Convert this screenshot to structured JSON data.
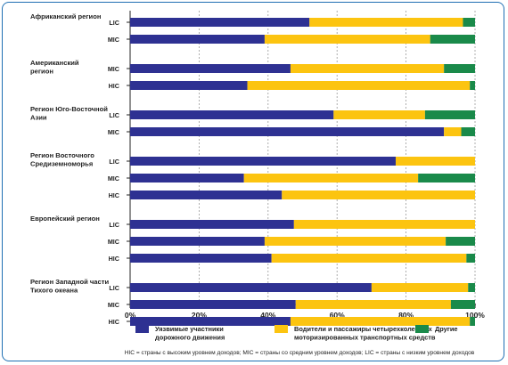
{
  "chart_data": {
    "type": "bar",
    "orientation": "horizontal",
    "stacked": "percent",
    "xlim": [
      0,
      100
    ],
    "xticks": [
      "0%",
      "20%",
      "40%",
      "60%",
      "80%",
      "100%"
    ],
    "grid": true,
    "legend_position": "bottom",
    "colors": {
      "vulnerable": "#2e3192",
      "drivers": "#fcc410",
      "other": "#1a8a4a"
    },
    "series_names": [
      "Уязвимые участники дорожного движения",
      "Водители и пассажиры четырехколесных моторизированных транспортных средств",
      "Другие"
    ],
    "legend_labels": [
      [
        "Уязвимые участники",
        "дорожного движения"
      ],
      [
        "Водители и пассажиры четырехколесных",
        "моторизированных транспортных средств"
      ],
      [
        "Другие"
      ]
    ],
    "groups": [
      {
        "region": [
          "Африканский регион"
        ],
        "bars": [
          {
            "code": "LIC",
            "values": [
              52,
              44.5,
              3.5
            ]
          },
          {
            "code": "MIC",
            "values": [
              39,
              48,
              13
            ]
          }
        ]
      },
      {
        "region": [
          "Американский",
          "регион"
        ],
        "bars": [
          {
            "code": "MIC",
            "values": [
              46.5,
              44.5,
              9
            ]
          },
          {
            "code": "HIC",
            "values": [
              34,
              64.5,
              1.5
            ]
          }
        ]
      },
      {
        "region": [
          "Регион Юго-Восточной",
          "Азии"
        ],
        "bars": [
          {
            "code": "LIC",
            "values": [
              59,
              26.5,
              14.5
            ]
          },
          {
            "code": "MIC",
            "values": [
              91,
              5,
              4
            ]
          }
        ]
      },
      {
        "region": [
          "Регион Восточного",
          "Средиземноморья"
        ],
        "bars": [
          {
            "code": "LIC",
            "values": [
              77,
              23,
              0
            ]
          },
          {
            "code": "MIC",
            "values": [
              33,
              50.5,
              16.5
            ]
          },
          {
            "code": "HIC",
            "values": [
              44,
              56,
              0
            ]
          }
        ]
      },
      {
        "region": [
          "Европейский регион"
        ],
        "bars": [
          {
            "code": "LIC",
            "values": [
              47.5,
              52.5,
              0
            ]
          },
          {
            "code": "MIC",
            "values": [
              39,
              52.5,
              8.5
            ]
          },
          {
            "code": "HIC",
            "values": [
              41,
              56.5,
              2.5
            ]
          }
        ]
      },
      {
        "region": [
          "Регион Западной части",
          "Тихого океана"
        ],
        "bars": [
          {
            "code": "LIC",
            "values": [
              70,
              28,
              2
            ]
          },
          {
            "code": "MIC",
            "values": [
              48,
              45,
              7
            ]
          },
          {
            "code": "HIC",
            "values": [
              46.5,
              52,
              1.5
            ]
          }
        ]
      }
    ],
    "footnote": "HIC = страны с высоким уровнем доходов; MIC = страны со средним уровнем доходов; LIC = страны с низким уровнем доходов"
  }
}
